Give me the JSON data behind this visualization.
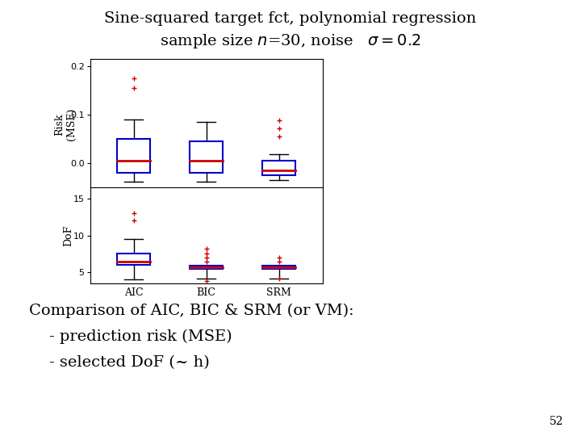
{
  "title_line1": "Sine-squared target fct, polynomial regression",
  "title_line2": "sample size $n$=30, noise   $\\sigma = 0.2$",
  "box_color": "#0000cc",
  "median_color": "#cc0000",
  "whisker_color": "#000000",
  "flier_color": "#cc0000",
  "categories": [
    "AIC",
    "BIC",
    "SRM"
  ],
  "risk_ylabel": "Risk\n(MSE)",
  "dof_ylabel": "DoF",
  "risk_ylim": [
    -0.055,
    0.215
  ],
  "risk_yticks": [
    0,
    0.1,
    0.2
  ],
  "dof_ylim": [
    3.5,
    16.5
  ],
  "dof_yticks": [
    5,
    10,
    15
  ],
  "risk_data": {
    "AIC": {
      "q1": -0.02,
      "median": 0.005,
      "q3": 0.05,
      "whisker_low": -0.038,
      "whisker_high": 0.09,
      "fliers_high": [
        0.155,
        0.175
      ],
      "fliers_low": []
    },
    "BIC": {
      "q1": -0.02,
      "median": 0.005,
      "q3": 0.045,
      "whisker_low": -0.038,
      "whisker_high": 0.085,
      "fliers_high": [],
      "fliers_low": []
    },
    "SRM": {
      "q1": -0.025,
      "median": -0.015,
      "q3": 0.005,
      "whisker_low": -0.035,
      "whisker_high": 0.018,
      "fliers_high": [
        0.055,
        0.072,
        0.088
      ],
      "fliers_low": []
    }
  },
  "dof_data": {
    "AIC": {
      "q1": 6.0,
      "median": 6.5,
      "q3": 7.5,
      "whisker_low": 4.0,
      "whisker_high": 9.5,
      "fliers_high": [
        12.0,
        13.0
      ],
      "fliers_low": []
    },
    "BIC": {
      "q1": 5.5,
      "median": 5.7,
      "q3": 5.9,
      "whisker_low": 4.2,
      "whisker_high": 5.9,
      "fliers_high": [
        6.5,
        7.0,
        7.5,
        8.2
      ],
      "fliers_low": [
        3.8
      ]
    },
    "SRM": {
      "q1": 5.5,
      "median": 5.7,
      "q3": 5.9,
      "whisker_low": 4.2,
      "whisker_high": 5.9,
      "fliers_high": [
        6.5,
        7.0
      ],
      "fliers_low": [
        4.2
      ]
    }
  },
  "comparison_text": "Comparison of AIC, BIC & SRM (or VM):",
  "bullet1": "    - prediction risk (MSE)",
  "bullet2": "    - selected DoF (~ h)",
  "slide_number": "52",
  "font_size_title": 14,
  "font_size_label": 9,
  "font_size_tick": 8,
  "font_size_bottom": 14
}
